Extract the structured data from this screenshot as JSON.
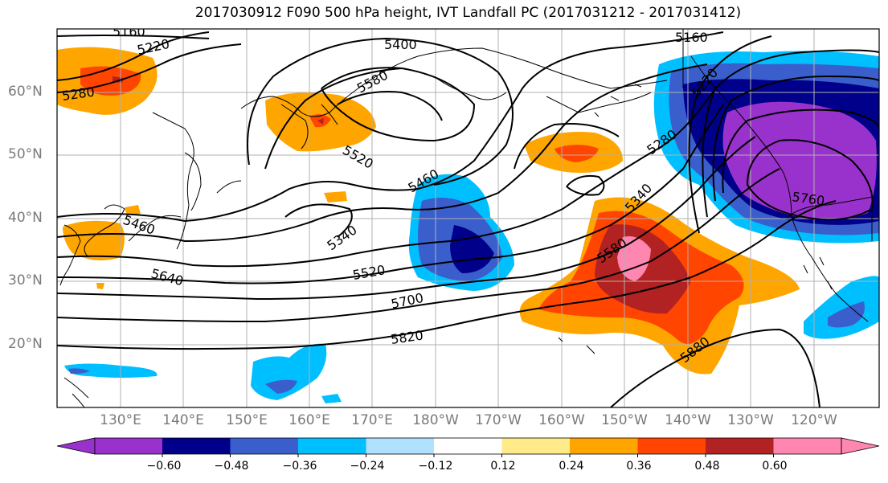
{
  "title": "2017030912 F090 500 hPa height, IVT Landfall PC (2017031212 - 2017031412)",
  "lat_labels": [
    "60°N",
    "50°N",
    "40°N",
    "30°N",
    "20°N"
  ],
  "lon_labels": [
    "130°E",
    "140°E",
    "150°E",
    "160°E",
    "170°E",
    "180°W",
    "170°W",
    "160°W",
    "150°W",
    "140°W",
    "130°W",
    "120°W"
  ],
  "contour_labels": [
    "5160",
    "5220",
    "5400",
    "5580",
    "5280",
    "5520",
    "5460",
    "5340",
    "5460",
    "5640",
    "5520",
    "5700",
    "5820",
    "5160",
    "5220",
    "5280",
    "5340",
    "5580",
    "5760",
    "5880"
  ],
  "colorbar": {
    "ticks": [
      "−0.60",
      "−0.48",
      "−0.36",
      "−0.24",
      "−0.12",
      "0.12",
      "0.24",
      "0.36",
      "0.48",
      "0.60"
    ],
    "colors": [
      "#9932cc",
      "#00008b",
      "#3a5fcd",
      "#00bfff",
      "#b0e2ff",
      "#ffffff",
      "#ffeb8a",
      "#ffa500",
      "#ff4500",
      "#b22222",
      "#ff86b0"
    ]
  }
}
